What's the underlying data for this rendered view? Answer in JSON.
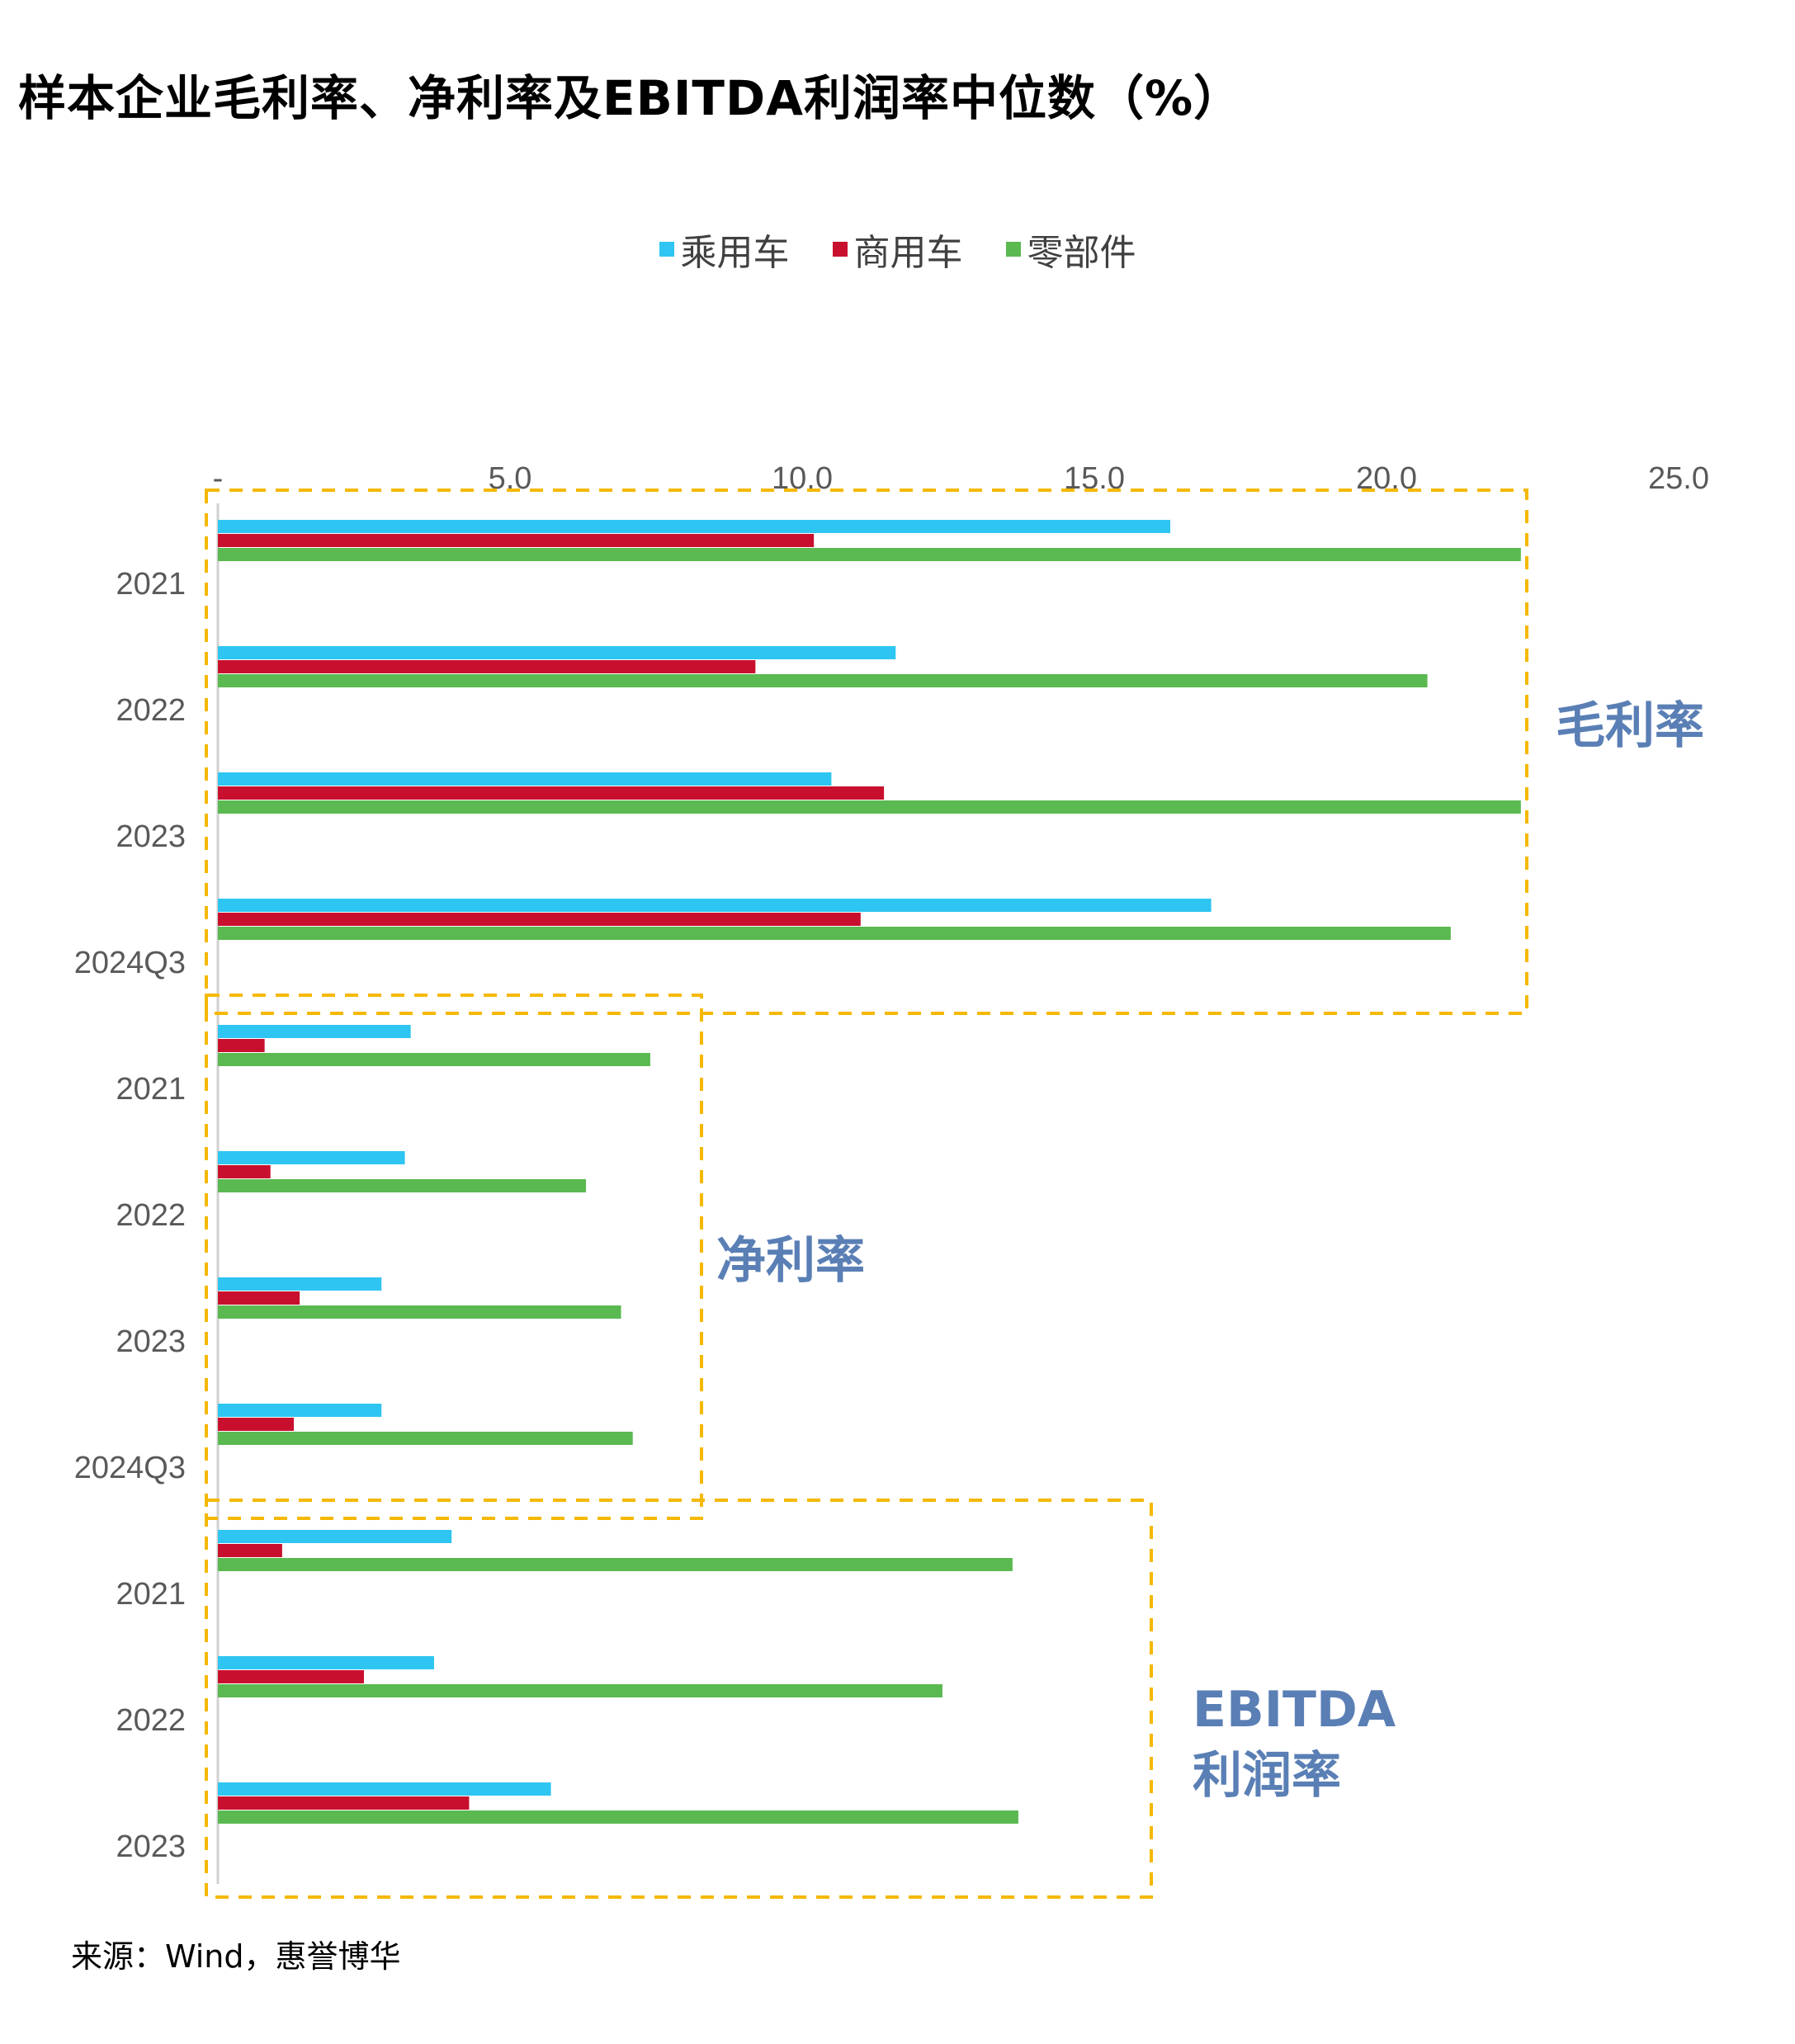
{
  "title": "样本企业毛利率、净利率及EBITDA利润率中位数（%）",
  "source": "来源：Wind，惠誉博华",
  "colors": {
    "passenger": "#2ec5f2",
    "commercial": "#c8102e",
    "parts": "#5ab950",
    "group_border": "#f5b800",
    "group_label": "#5a7fb5",
    "axis_text": "#595959"
  },
  "chart_data": {
    "type": "bar",
    "orientation": "horizontal",
    "title": "样本企业毛利率、净利率及EBITDA利润率中位数（%）",
    "xlabel": "",
    "ylabel": "",
    "xlim": [
      0,
      25
    ],
    "x_ticks": [
      "-",
      "5.0",
      "10.0",
      "15.0",
      "20.0",
      "25.0"
    ],
    "grid": false,
    "legend_position": "top-center",
    "series_names": [
      "乘用车",
      "商用车",
      "零部件"
    ],
    "groups": [
      {
        "label": "毛利率",
        "categories": [
          "2021",
          "2022",
          "2023",
          "2024Q3"
        ],
        "series": [
          {
            "name": "乘用车",
            "values": [
              16.3,
              11.6,
              10.5,
              17.0
            ]
          },
          {
            "name": "商用车",
            "values": [
              10.2,
              9.2,
              11.4,
              11.0
            ]
          },
          {
            "name": "零部件",
            "values": [
              22.3,
              20.7,
              22.3,
              21.1
            ]
          }
        ]
      },
      {
        "label": "净利率",
        "categories": [
          "2021",
          "2022",
          "2023",
          "2024Q3"
        ],
        "series": [
          {
            "name": "乘用车",
            "values": [
              3.3,
              3.2,
              2.8,
              2.8
            ]
          },
          {
            "name": "商用车",
            "values": [
              0.8,
              0.9,
              1.4,
              1.3
            ]
          },
          {
            "name": "零部件",
            "values": [
              7.4,
              6.3,
              6.9,
              7.1
            ]
          }
        ]
      },
      {
        "label": "EBITDA\n利润率",
        "categories": [
          "2021",
          "2022",
          "2023"
        ],
        "series": [
          {
            "name": "乘用车",
            "values": [
              4.0,
              3.7,
              5.7
            ]
          },
          {
            "name": "商用车",
            "values": [
              1.1,
              2.5,
              4.3
            ]
          },
          {
            "name": "零部件",
            "values": [
              13.6,
              12.4,
              13.7
            ]
          }
        ]
      }
    ]
  }
}
